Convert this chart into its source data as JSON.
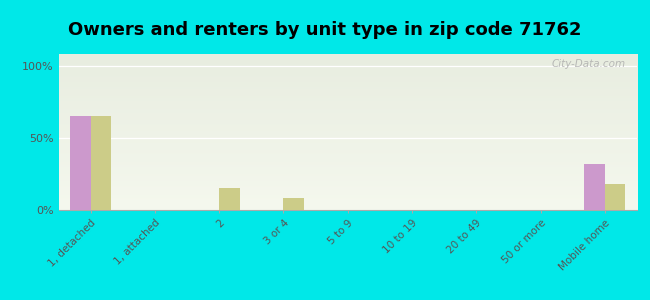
{
  "title": "Owners and renters by unit type in zip code 71762",
  "categories": [
    "1, detached",
    "1, attached",
    "2",
    "3 or 4",
    "5 to 9",
    "10 to 19",
    "20 to 49",
    "50 or more",
    "Mobile home"
  ],
  "owner_values": [
    65,
    0,
    0,
    0,
    0,
    0,
    0,
    0,
    32
  ],
  "renter_values": [
    65,
    0,
    15,
    8,
    0,
    0,
    0,
    0,
    18
  ],
  "owner_color": "#cc99cc",
  "renter_color": "#cccc88",
  "background_outer": "#00e8e8",
  "yticks": [
    0,
    50,
    100
  ],
  "ylabels": [
    "0%",
    "50%",
    "100%"
  ],
  "ylim": [
    0,
    108
  ],
  "bar_width": 0.32,
  "title_fontsize": 13,
  "watermark": "City-Data.com",
  "grad_top": "#e8ede0",
  "grad_bottom": "#f5f8ee"
}
